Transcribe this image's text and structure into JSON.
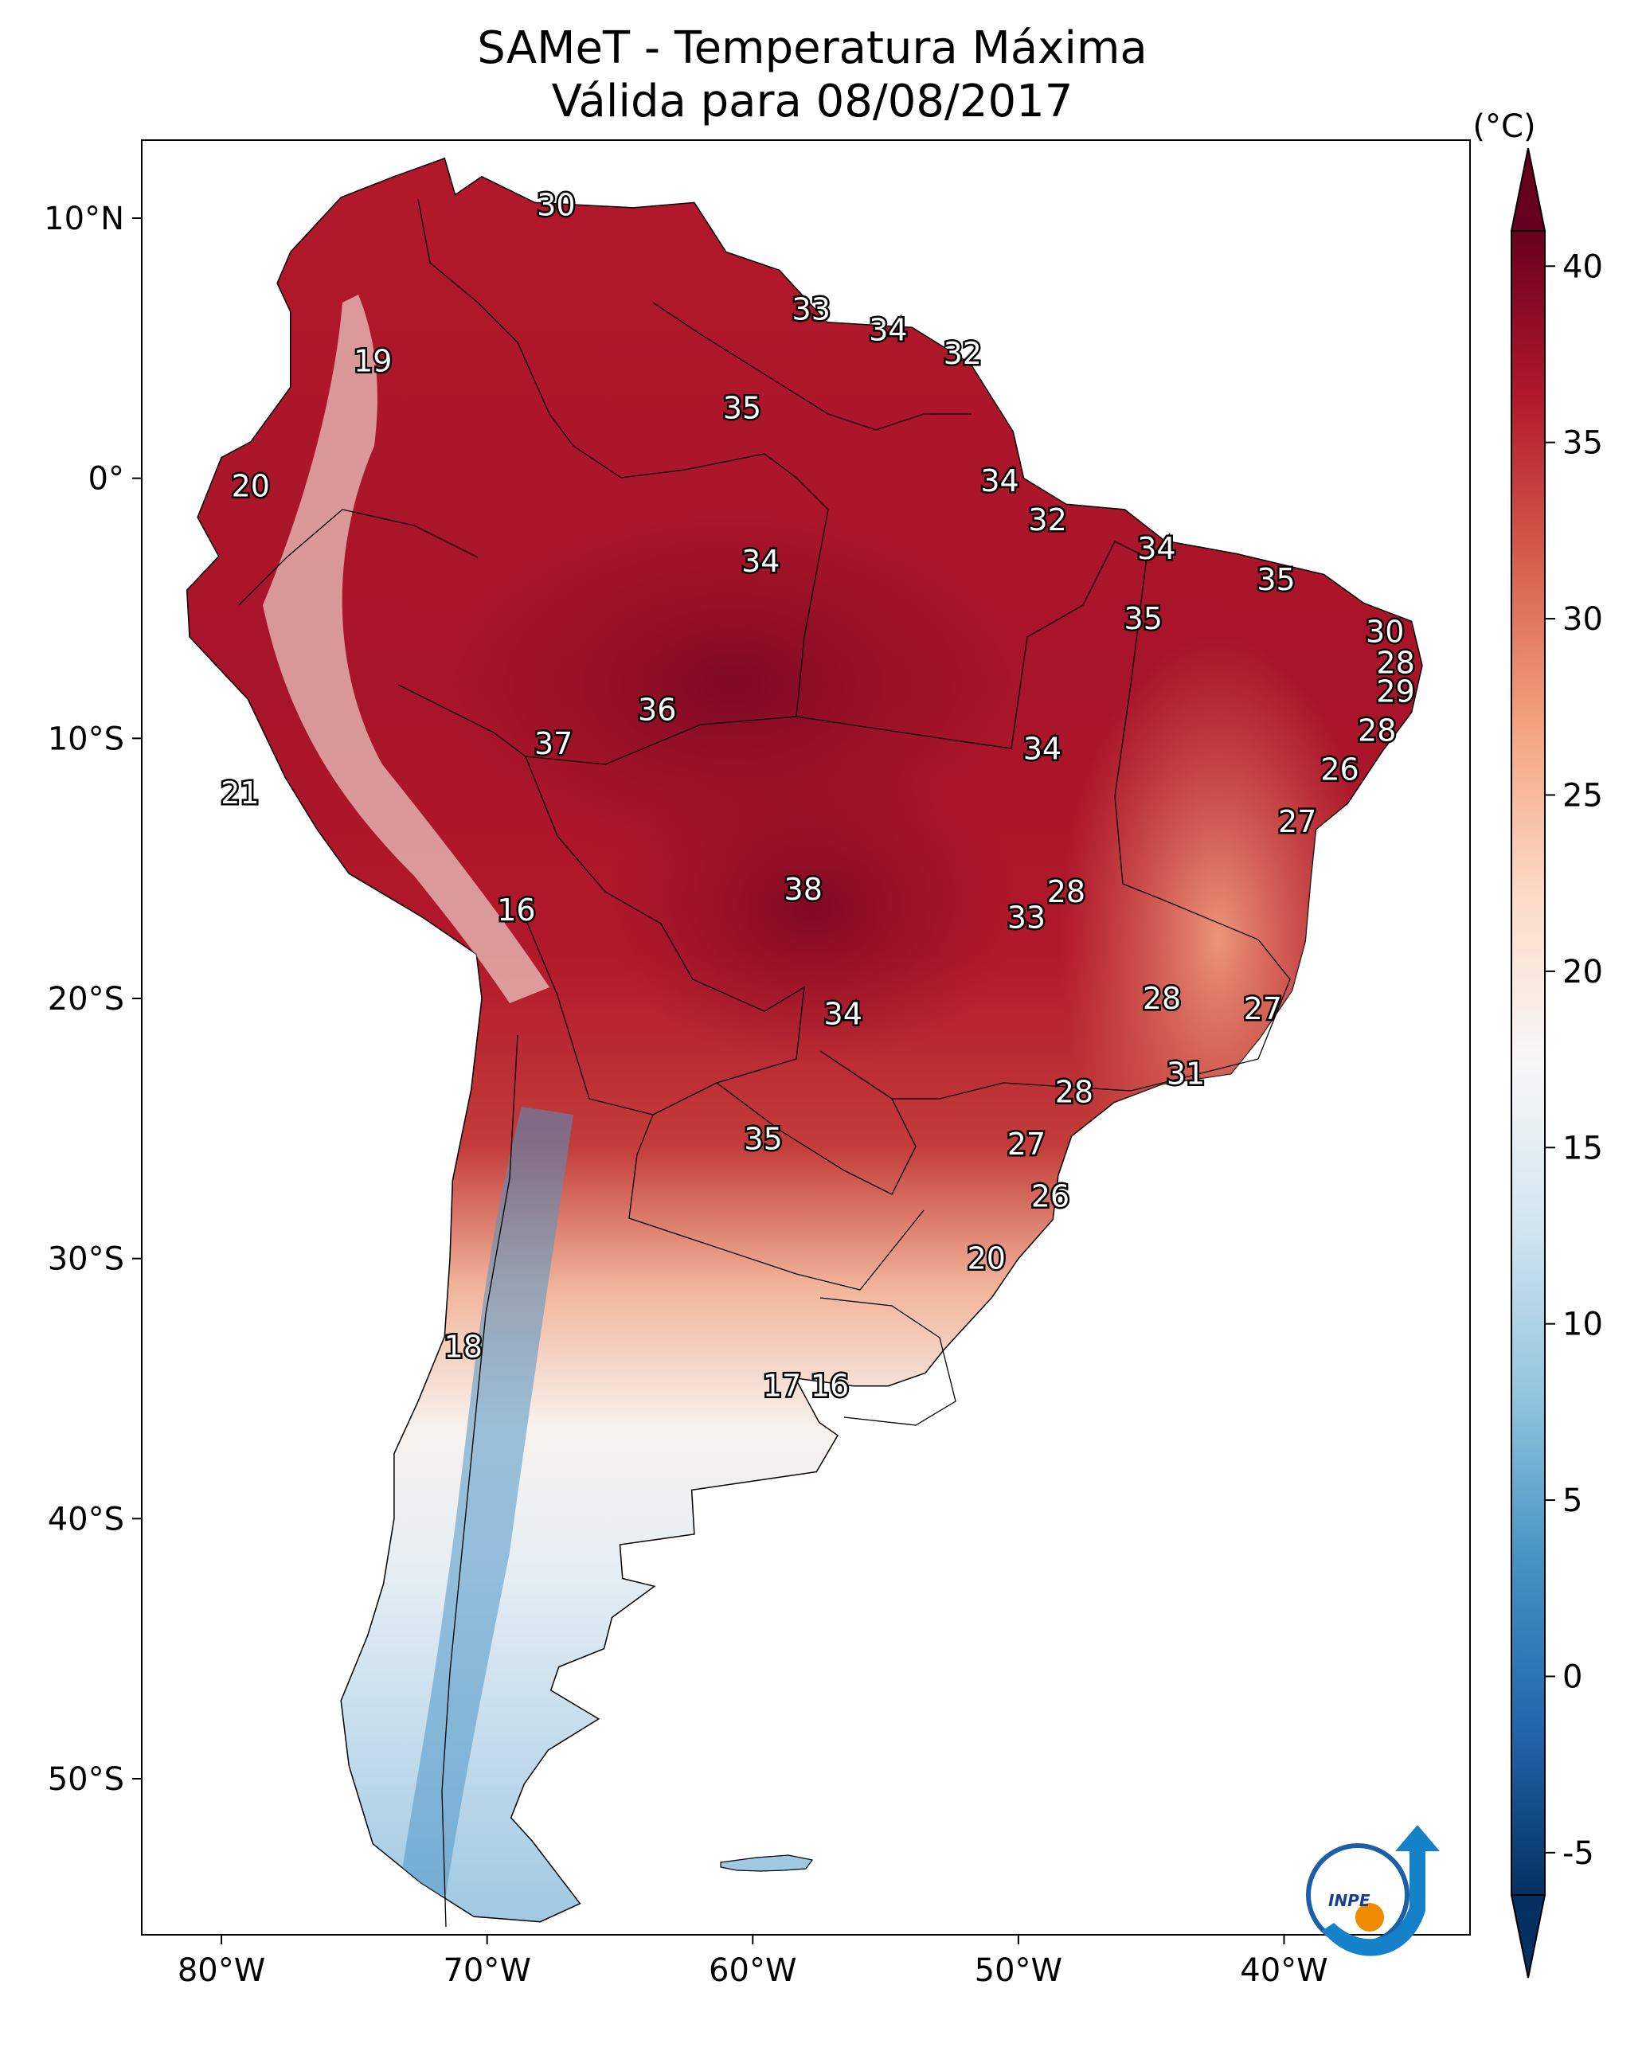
{
  "title": "SAMeT - Temperatura Máxima",
  "subtitle": "Válida para 08/08/2017",
  "logo_text": "INPE",
  "colorbar": {
    "unit": "(°C)",
    "ticks": [
      "40",
      "35",
      "30",
      "25",
      "20",
      "15",
      "10",
      "5",
      "0",
      "-5"
    ],
    "range": [
      -5,
      40
    ],
    "colors": [
      "#053061",
      "#2166ac",
      "#4393c3",
      "#92c5de",
      "#d1e5f0",
      "#f7f7f7",
      "#fddbc7",
      "#f4a582",
      "#d6604d",
      "#b2182b",
      "#67001f"
    ]
  },
  "axes": {
    "lon_labels": [
      "80°W",
      "70°W",
      "60°W",
      "50°W",
      "40°W"
    ],
    "lat_labels": [
      "10°N",
      "0°",
      "10°S",
      "20°S",
      "30°S",
      "40°S",
      "50°S"
    ]
  },
  "chart_data": {
    "type": "map",
    "title": "SAMeT - Temperatura Máxima — Válida para 08/08/2017",
    "variable": "Maximum temperature (°C)",
    "lon_range": [
      -83,
      -33
    ],
    "lat_range": [
      -56,
      13
    ],
    "station_labels": [
      {
        "value": "30",
        "lon": -67.4,
        "lat": 10.5
      },
      {
        "value": "19",
        "lon": -74.3,
        "lat": 4.5
      },
      {
        "value": "33",
        "lon": -57.8,
        "lat": 6.5
      },
      {
        "value": "34",
        "lon": -54.9,
        "lat": 5.7
      },
      {
        "value": "32",
        "lon": -52.1,
        "lat": 4.8
      },
      {
        "value": "35",
        "lon": -60.4,
        "lat": 2.7
      },
      {
        "value": "20",
        "lon": -78.9,
        "lat": -0.3
      },
      {
        "value": "34",
        "lon": -50.7,
        "lat": -0.1
      },
      {
        "value": "32",
        "lon": -48.9,
        "lat": -1.6
      },
      {
        "value": "34",
        "lon": -59.7,
        "lat": -3.2
      },
      {
        "value": "34",
        "lon": -44.8,
        "lat": -2.7
      },
      {
        "value": "35",
        "lon": -40.3,
        "lat": -3.9
      },
      {
        "value": "35",
        "lon": -45.3,
        "lat": -5.4
      },
      {
        "value": "30",
        "lon": -36.2,
        "lat": -5.9
      },
      {
        "value": "28",
        "lon": -35.8,
        "lat": -7.1
      },
      {
        "value": "29",
        "lon": -35.8,
        "lat": -8.2
      },
      {
        "value": "36",
        "lon": -63.6,
        "lat": -8.9
      },
      {
        "value": "37",
        "lon": -67.5,
        "lat": -10.2
      },
      {
        "value": "34",
        "lon": -49.1,
        "lat": -10.4
      },
      {
        "value": "28",
        "lon": -36.5,
        "lat": -9.7
      },
      {
        "value": "26",
        "lon": -37.9,
        "lat": -11.2
      },
      {
        "value": "21",
        "lon": -79.3,
        "lat": -12.1
      },
      {
        "value": "27",
        "lon": -39.5,
        "lat": -13.2
      },
      {
        "value": "16",
        "lon": -68.9,
        "lat": -16.6
      },
      {
        "value": "38",
        "lon": -58.1,
        "lat": -15.8
      },
      {
        "value": "28",
        "lon": -48.2,
        "lat": -15.9
      },
      {
        "value": "33",
        "lon": -49.7,
        "lat": -16.9
      },
      {
        "value": "28",
        "lon": -44.6,
        "lat": -20.0
      },
      {
        "value": "27",
        "lon": -40.8,
        "lat": -20.4
      },
      {
        "value": "34",
        "lon": -56.6,
        "lat": -20.6
      },
      {
        "value": "31",
        "lon": -43.7,
        "lat": -22.9
      },
      {
        "value": "28",
        "lon": -47.9,
        "lat": -23.6
      },
      {
        "value": "35",
        "lon": -59.6,
        "lat": -25.4
      },
      {
        "value": "27",
        "lon": -49.7,
        "lat": -25.6
      },
      {
        "value": "26",
        "lon": -48.8,
        "lat": -27.6
      },
      {
        "value": "20",
        "lon": -51.2,
        "lat": -30.0
      },
      {
        "value": "18",
        "lon": -70.9,
        "lat": -33.4
      },
      {
        "value": "17",
        "lon": -58.9,
        "lat": -34.9
      },
      {
        "value": "16",
        "lon": -57.1,
        "lat": -34.9
      }
    ]
  }
}
